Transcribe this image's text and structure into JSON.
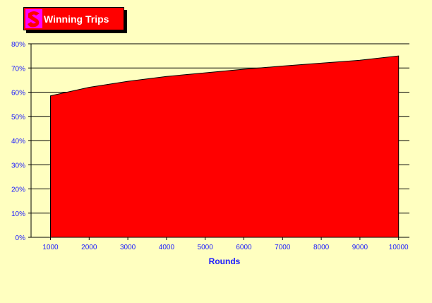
{
  "title": "Winning Trips",
  "colors": {
    "background": "#FFFFC0",
    "area_fill": "#FF0000",
    "logo": "#FF00FF",
    "tick_text": "#1A1AFF"
  },
  "chart_data": {
    "type": "area",
    "title": "Winning Trips",
    "xlabel": "Rounds",
    "ylabel": "",
    "x": [
      1000,
      2000,
      3000,
      4000,
      5000,
      6000,
      7000,
      8000,
      9000,
      10000
    ],
    "series": [
      {
        "values": [
          58.5,
          62.0,
          64.5,
          66.5,
          68.0,
          69.5,
          70.8,
          72.0,
          73.2,
          75.0
        ]
      }
    ],
    "yticks": [
      "0%",
      "10%",
      "20%",
      "30%",
      "40%",
      "50%",
      "60%",
      "70%",
      "80%"
    ],
    "xticks": [
      "1000",
      "2000",
      "3000",
      "4000",
      "5000",
      "6000",
      "7000",
      "8000",
      "9000",
      "10000"
    ],
    "ylim": [
      0,
      80
    ],
    "grid": "horizontal",
    "legend": "none"
  }
}
